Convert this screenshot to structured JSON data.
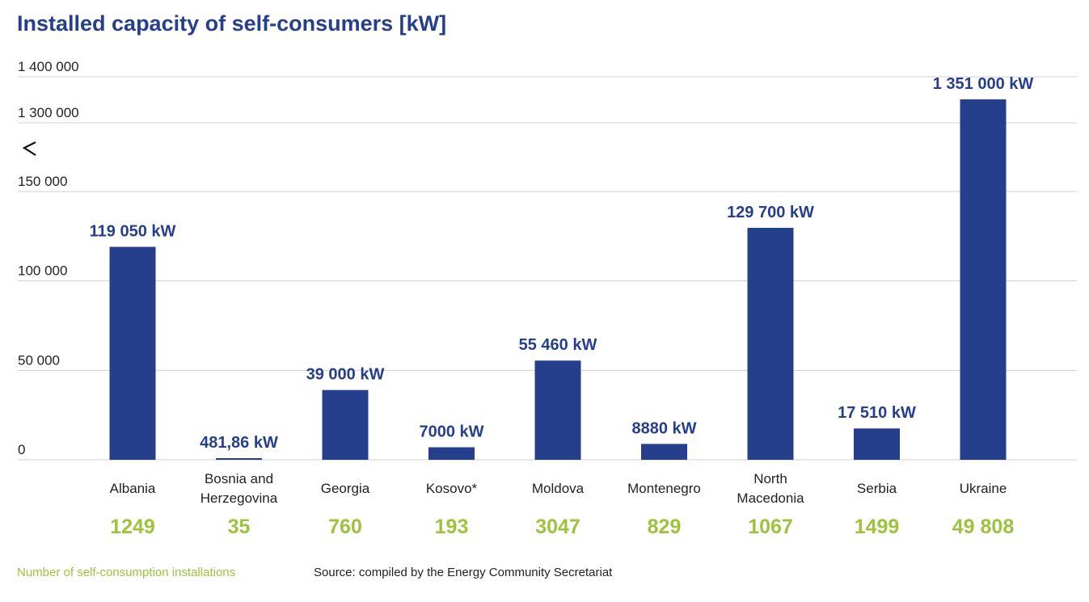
{
  "chart_data": {
    "type": "bar",
    "title": "Installed capacity of self-consumers [kW]",
    "categories": [
      "Albania",
      "Bosnia and Herzegovina",
      "Georgia",
      "Kosovo*",
      "Moldova",
      "Montenegro",
      "North Macedonia",
      "Serbia",
      "Ukraine"
    ],
    "values": [
      119050,
      481.86,
      39000,
      7000,
      55460,
      8880,
      129700,
      17510,
      1351000
    ],
    "value_labels": [
      "119 050 kW",
      "481,86 kW",
      "39 000 kW",
      "7000 kW",
      "55 460 kW",
      "8880 kW",
      "129 700 kW",
      "17 510 kW",
      "1 351 000 kW"
    ],
    "installations": [
      "1249",
      "35",
      "760",
      "193",
      "3047",
      "829",
      "1067",
      "1499",
      "49 808"
    ],
    "yticks": [
      0,
      50000,
      100000,
      150000,
      1300000,
      1400000
    ],
    "ytick_labels": [
      "0",
      "50 000",
      "100 000",
      "150 000",
      "1 300 000",
      "1 400 000"
    ],
    "axis_break": {
      "from": 150000,
      "to": 1300000
    },
    "ylim": [
      0,
      1400000
    ],
    "grid": true,
    "xlabel": "",
    "ylabel": "",
    "colors": {
      "bar": "#263f8c",
      "value_label": "#263f8c",
      "installations": "#9cc33b",
      "grid": "#d0d0d0"
    }
  },
  "footer": {
    "legend": "Number of self-consumption installations",
    "source": "Source: compiled by the Energy Community Secretariat"
  }
}
